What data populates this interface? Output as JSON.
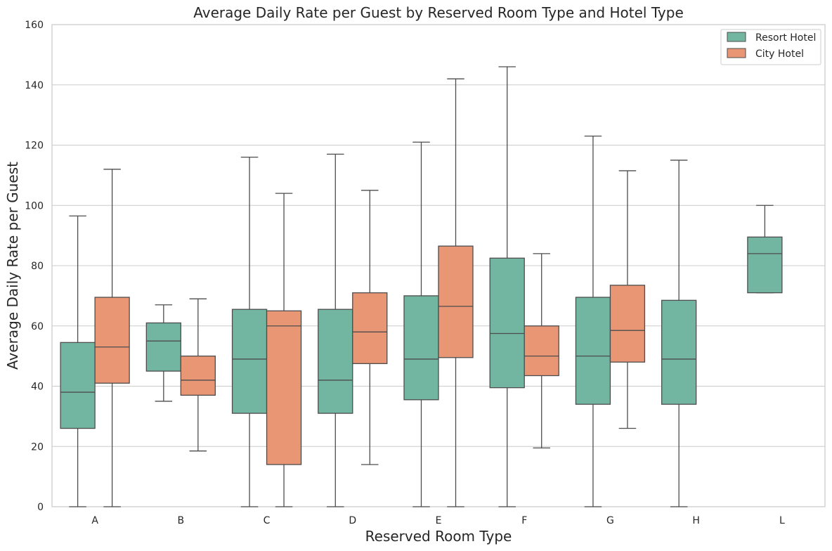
{
  "chart_data": {
    "type": "box",
    "title": "Average Daily Rate per Guest by Reserved Room Type and Hotel Type",
    "xlabel": "Reserved Room Type",
    "ylabel": "Average Daily Rate per Guest",
    "ylim": [
      0,
      160
    ],
    "yticks": [
      "0",
      "20",
      "40",
      "60",
      "80",
      "100",
      "120",
      "140",
      "160"
    ],
    "categories": [
      "A",
      "B",
      "C",
      "D",
      "E",
      "F",
      "G",
      "H",
      "L"
    ],
    "grid": "horizontal",
    "legend_position": "top-right",
    "series": [
      {
        "name": "Resort Hotel",
        "color": "#72b6a1",
        "boxes": [
          {
            "category": "A",
            "whislo": 0,
            "q1": 26,
            "med": 38,
            "q3": 54.5,
            "whishi": 96.5
          },
          {
            "category": "B",
            "whislo": 35,
            "q1": 45,
            "med": 55,
            "q3": 61,
            "whishi": 67
          },
          {
            "category": "C",
            "whislo": 0,
            "q1": 31,
            "med": 49,
            "q3": 65.5,
            "whishi": 116
          },
          {
            "category": "D",
            "whislo": 0,
            "q1": 31,
            "med": 42,
            "q3": 65.5,
            "whishi": 117
          },
          {
            "category": "E",
            "whislo": 0,
            "q1": 35.5,
            "med": 49,
            "q3": 70,
            "whishi": 121
          },
          {
            "category": "F",
            "whislo": 0,
            "q1": 39.5,
            "med": 57.5,
            "q3": 82.5,
            "whishi": 146
          },
          {
            "category": "G",
            "whislo": 0,
            "q1": 34,
            "med": 50,
            "q3": 69.5,
            "whishi": 123
          },
          {
            "category": "H",
            "whislo": 0,
            "q1": 34,
            "med": 49,
            "q3": 68.5,
            "whishi": 115
          },
          {
            "category": "L",
            "whislo": 71,
            "q1": 71,
            "med": 84,
            "q3": 89.5,
            "whishi": 100
          }
        ]
      },
      {
        "name": "City Hotel",
        "color": "#e99675",
        "boxes": [
          {
            "category": "A",
            "whislo": 0,
            "q1": 41,
            "med": 53,
            "q3": 69.5,
            "whishi": 112
          },
          {
            "category": "B",
            "whislo": 18.5,
            "q1": 37,
            "med": 42,
            "q3": 50,
            "whishi": 69
          },
          {
            "category": "C",
            "whislo": 0,
            "q1": 14,
            "med": 60,
            "q3": 65,
            "whishi": 104
          },
          {
            "category": "D",
            "whislo": 14,
            "q1": 47.5,
            "med": 58,
            "q3": 71,
            "whishi": 105
          },
          {
            "category": "E",
            "whislo": 0,
            "q1": 49.5,
            "med": 66.5,
            "q3": 86.5,
            "whishi": 142
          },
          {
            "category": "F",
            "whislo": 19.5,
            "q1": 43.5,
            "med": 50,
            "q3": 60,
            "whishi": 84
          },
          {
            "category": "G",
            "whislo": 26,
            "q1": 48,
            "med": 58.5,
            "q3": 73.5,
            "whishi": 111.5
          }
        ]
      }
    ]
  }
}
